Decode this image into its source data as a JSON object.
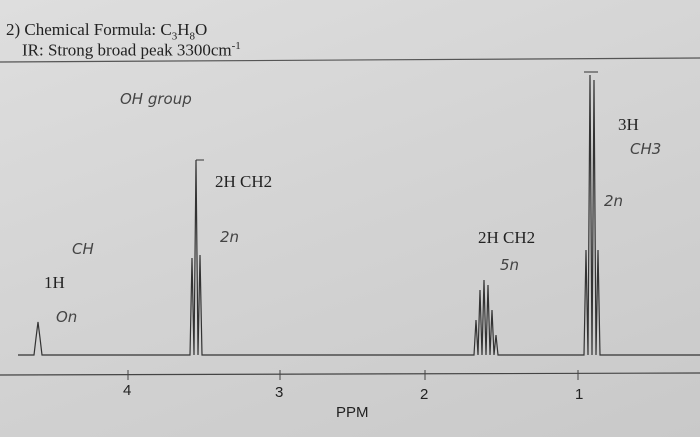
{
  "header": {
    "formula": {
      "prefix": "2) Chemical Formula: C",
      "c_count": "3",
      "h": "H",
      "h_count": "8",
      "o": "O"
    },
    "ir": {
      "text": "IR: Strong broad peak 3300cm",
      "superscript": "-1"
    }
  },
  "annotations": {
    "oh_group": "OH group",
    "h3": "3H",
    "ch3": "CH3",
    "split_ch3": "2n",
    "h2_first": "2H CH2",
    "split_first": "2n",
    "ch": "CH",
    "h1": "1H",
    "split_oh": "On",
    "h2_second": "2H CH2",
    "split_second": "5n"
  },
  "axis": {
    "ticks": [
      "4",
      "3",
      "2",
      "1"
    ],
    "label": "PPM"
  }
}
